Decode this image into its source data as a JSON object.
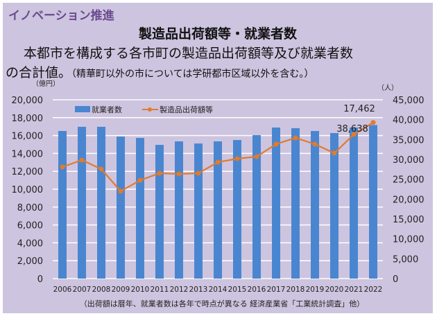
{
  "header": {
    "section": "イノベーション推進",
    "title": "製造品出荷額等・就業者数",
    "desc_line1": "本都市を構成する各市町の製造品出荷額等及び就業者数",
    "desc_line2_main": "の合計値。",
    "desc_line2_note": "（精華町以外の市については学研都市区域以外を含む。）"
  },
  "chart_data": {
    "type": "bar+line",
    "categories": [
      "2006",
      "2007",
      "2008",
      "2009",
      "2010",
      "2011",
      "2012",
      "2013",
      "2014",
      "2015",
      "2016",
      "2017",
      "2018",
      "2019",
      "2020",
      "2021",
      "2022"
    ],
    "series": [
      {
        "name": "就業者数",
        "type": "bar",
        "axis": "right",
        "color": "#4a86d0",
        "values": [
          37150,
          38200,
          38200,
          35750,
          35400,
          33660,
          34530,
          34000,
          34530,
          34880,
          36100,
          38020,
          37850,
          37150,
          36630,
          38020,
          38638
        ]
      },
      {
        "name": "製造品出荷額等",
        "type": "line",
        "axis": "left",
        "color": "#e07b2e",
        "values": [
          12480,
          13260,
          12250,
          9770,
          11000,
          11780,
          11700,
          11780,
          13020,
          13410,
          13640,
          15040,
          15740,
          15040,
          14030,
          16120,
          17462
        ]
      }
    ],
    "left_axis": {
      "label": "（億円）",
      "range": [
        0,
        20000
      ],
      "ticks": [
        "0",
        "2,000",
        "4,000",
        "6,000",
        "8,000",
        "10,000",
        "12,000",
        "14,000",
        "16,000",
        "18,000",
        "20,000"
      ]
    },
    "right_axis": {
      "label": "（人）",
      "range": [
        0,
        45000
      ],
      "ticks": [
        "0",
        "5,000",
        "10,000",
        "15,000",
        "20,000",
        "25,000",
        "30,000",
        "35,000",
        "40,000",
        "45,000"
      ]
    },
    "data_labels": {
      "line_last": "17,462",
      "bar_last": "38,638"
    },
    "legend_position": "top-left",
    "grid": true,
    "source": "（出荷額は暦年、就業者数は各年で時点が異なる 経済産業省「工業統計調査」他）"
  }
}
